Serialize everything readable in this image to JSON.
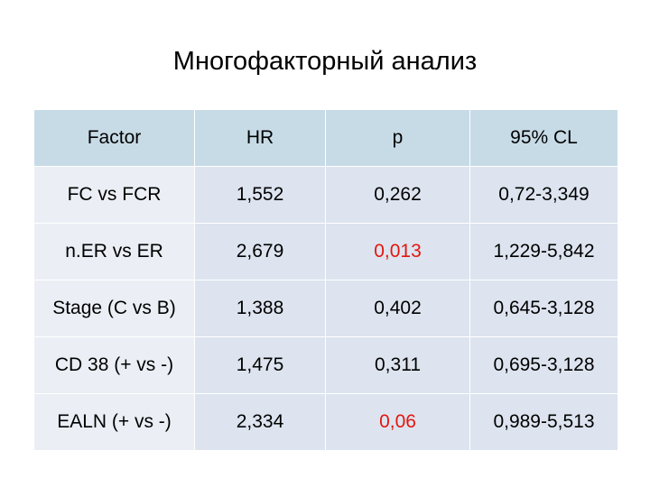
{
  "title": "Многофакторный анализ",
  "table": {
    "headers": [
      "Factor",
      "HR",
      "p",
      "95% CL"
    ],
    "rows": [
      {
        "factor": "FC vs FCR",
        "hr": "1,552",
        "p": "0,262",
        "cl": "0,72-3,349"
      },
      {
        "factor": "n.ER vs ER",
        "hr": "2,679",
        "p": "0,013",
        "cl": "1,229-5,842"
      },
      {
        "factor": "Stage (C vs B)",
        "hr": "1,388",
        "p": "0,402",
        "cl": "0,645-3,128"
      },
      {
        "factor": "CD 38 (+ vs -)",
        "hr": "1,475",
        "p": "0,311",
        "cl": "0,695-3,128"
      },
      {
        "factor": "EALN (+ vs -)",
        "hr": "2,334",
        "p": "0,06",
        "cl": "0,989-5,513"
      }
    ]
  },
  "colors": {
    "header_bg": "#c7dbe7",
    "factor_bg": "#ebeff5",
    "cell_bg": "#dde4ef",
    "highlight_text": "#e3160f"
  }
}
